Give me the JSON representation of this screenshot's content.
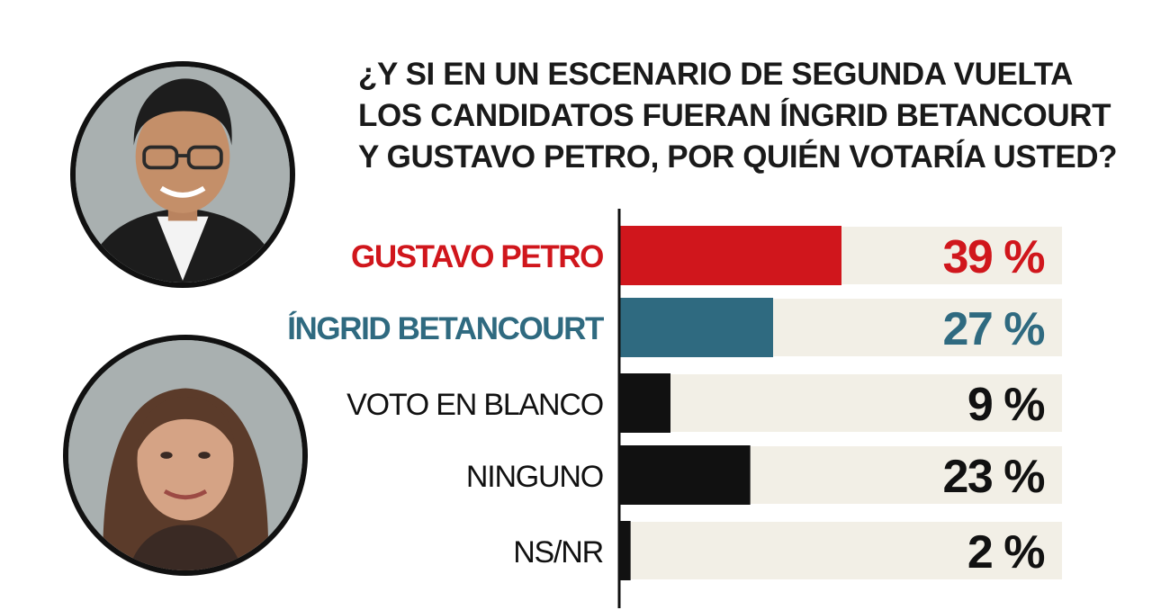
{
  "question": {
    "lines": [
      "¿Y SI EN UN ESCENARIO DE SEGUNDA VUELTA",
      "LOS CANDIDATOS FUERAN ÍNGRID BETANCOURT",
      "Y GUSTAVO PETRO, POR QUIÉN VOTARÍA USTED?"
    ]
  },
  "photos": {
    "top": "portrait-man-icon",
    "bottom": "portrait-woman-icon"
  },
  "colors": {
    "petro": "#d0161c",
    "ingrid": "#2f6a80",
    "dark": "#111111",
    "track": "#f2efe6"
  },
  "chart_data": {
    "type": "bar",
    "orientation": "horizontal",
    "title": "¿Y SI EN UN ESCENARIO DE SEGUNDA VUELTA LOS CANDIDATOS FUERAN ÍNGRID BETANCOURT Y GUSTAVO PETRO, POR QUIÉN VOTARÍA USTED?",
    "categories": [
      "GUSTAVO PETRO",
      "ÍNGRID BETANCOURT",
      "VOTO EN BLANCO",
      "NINGUNO",
      "NS/NR"
    ],
    "values": [
      39,
      27,
      9,
      23,
      2
    ],
    "value_labels": [
      "39 %",
      "27 %",
      "9 %",
      "23 %",
      "2 %"
    ],
    "unit": "%",
    "bar_colors": [
      "#d0161c",
      "#2f6a80",
      "#111111",
      "#111111",
      "#111111"
    ],
    "label_bold": [
      true,
      true,
      false,
      false,
      false
    ],
    "xlim": [
      0,
      100
    ],
    "grid": false,
    "legend": "none"
  }
}
